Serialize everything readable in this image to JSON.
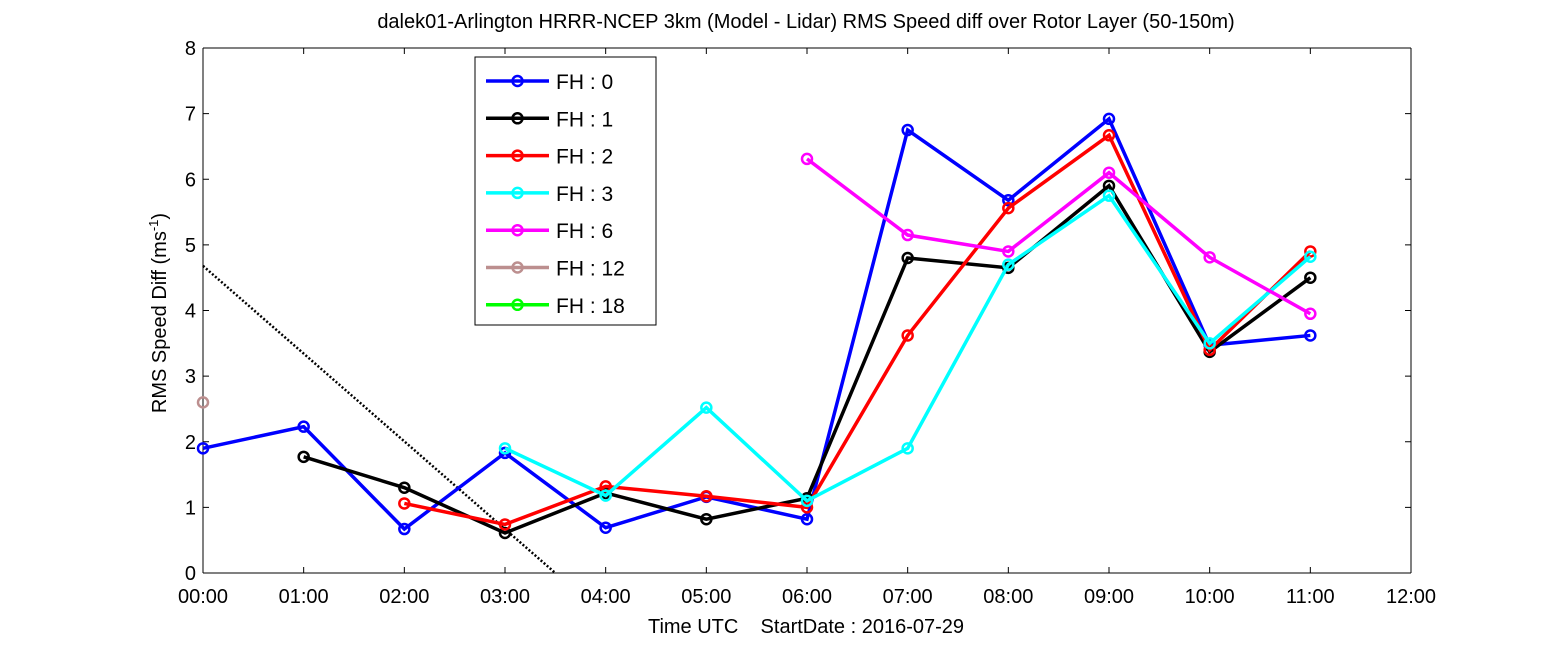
{
  "chart_data": {
    "type": "line",
    "title": "dalek01-Arlington HRRR-NCEP 3km (Model - Lidar) RMS Speed diff over Rotor Layer (50-150m)",
    "xlabel": "Time UTC    StartDate : 2016-07-29",
    "ylabel_main": "RMS Speed Diff (ms",
    "ylabel_sup": "-1",
    "ylabel_end": ")",
    "xlim": [
      0,
      12
    ],
    "ylim": [
      0,
      8
    ],
    "x_ticks": [
      0,
      1,
      2,
      3,
      4,
      5,
      6,
      7,
      8,
      9,
      10,
      11,
      12
    ],
    "x_tick_labels": [
      "00:00",
      "01:00",
      "02:00",
      "03:00",
      "04:00",
      "05:00",
      "06:00",
      "07:00",
      "08:00",
      "09:00",
      "10:00",
      "11:00",
      "12:00"
    ],
    "y_ticks": [
      0,
      1,
      2,
      3,
      4,
      5,
      6,
      7,
      8
    ],
    "y_tick_labels": [
      "0",
      "1",
      "2",
      "3",
      "4",
      "5",
      "6",
      "7",
      "8"
    ],
    "grid": false,
    "legend_position": "top-left",
    "series": [
      {
        "name": "FH : 0",
        "color": "#0000ff",
        "x": [
          0,
          1,
          2,
          3,
          4,
          5,
          6,
          7,
          8,
          9,
          10,
          11
        ],
        "values": [
          1.9,
          2.23,
          0.67,
          1.83,
          0.69,
          1.16,
          0.82,
          6.75,
          5.68,
          6.92,
          3.47,
          3.62
        ]
      },
      {
        "name": "FH : 1",
        "color": "#000000",
        "x": [
          1,
          2,
          3,
          4,
          5,
          6,
          7,
          8,
          9,
          10,
          11
        ],
        "values": [
          1.77,
          1.3,
          0.61,
          1.22,
          0.82,
          1.14,
          4.8,
          4.65,
          5.9,
          3.37,
          4.5
        ]
      },
      {
        "name": "FH : 2",
        "color": "#ff0000",
        "x": [
          2,
          3,
          4,
          5,
          6,
          7,
          8,
          9,
          10,
          11
        ],
        "values": [
          1.06,
          0.74,
          1.32,
          1.17,
          1.0,
          3.62,
          5.56,
          6.67,
          3.4,
          4.9
        ]
      },
      {
        "name": "FH : 3",
        "color": "#00ffff",
        "x": [
          3,
          4,
          5,
          6,
          7,
          8,
          9,
          10,
          11
        ],
        "values": [
          1.9,
          1.18,
          2.52,
          1.1,
          1.9,
          4.7,
          5.75,
          3.5,
          4.82
        ]
      },
      {
        "name": "FH : 6",
        "color": "#ff00ff",
        "x": [
          6,
          7,
          8,
          9,
          10,
          11
        ],
        "values": [
          6.31,
          5.15,
          4.9,
          6.1,
          4.81,
          3.95
        ]
      },
      {
        "name": "FH : 12",
        "color": "#bc8f8f",
        "x": [
          0
        ],
        "values": [
          2.6
        ]
      },
      {
        "name": "FH : 18",
        "color": "#00ff00",
        "x": [],
        "values": []
      }
    ],
    "reference_line": {
      "style": "dotted",
      "color": "#000000",
      "x": [
        0,
        3.5
      ],
      "values": [
        4.68,
        0
      ]
    }
  }
}
